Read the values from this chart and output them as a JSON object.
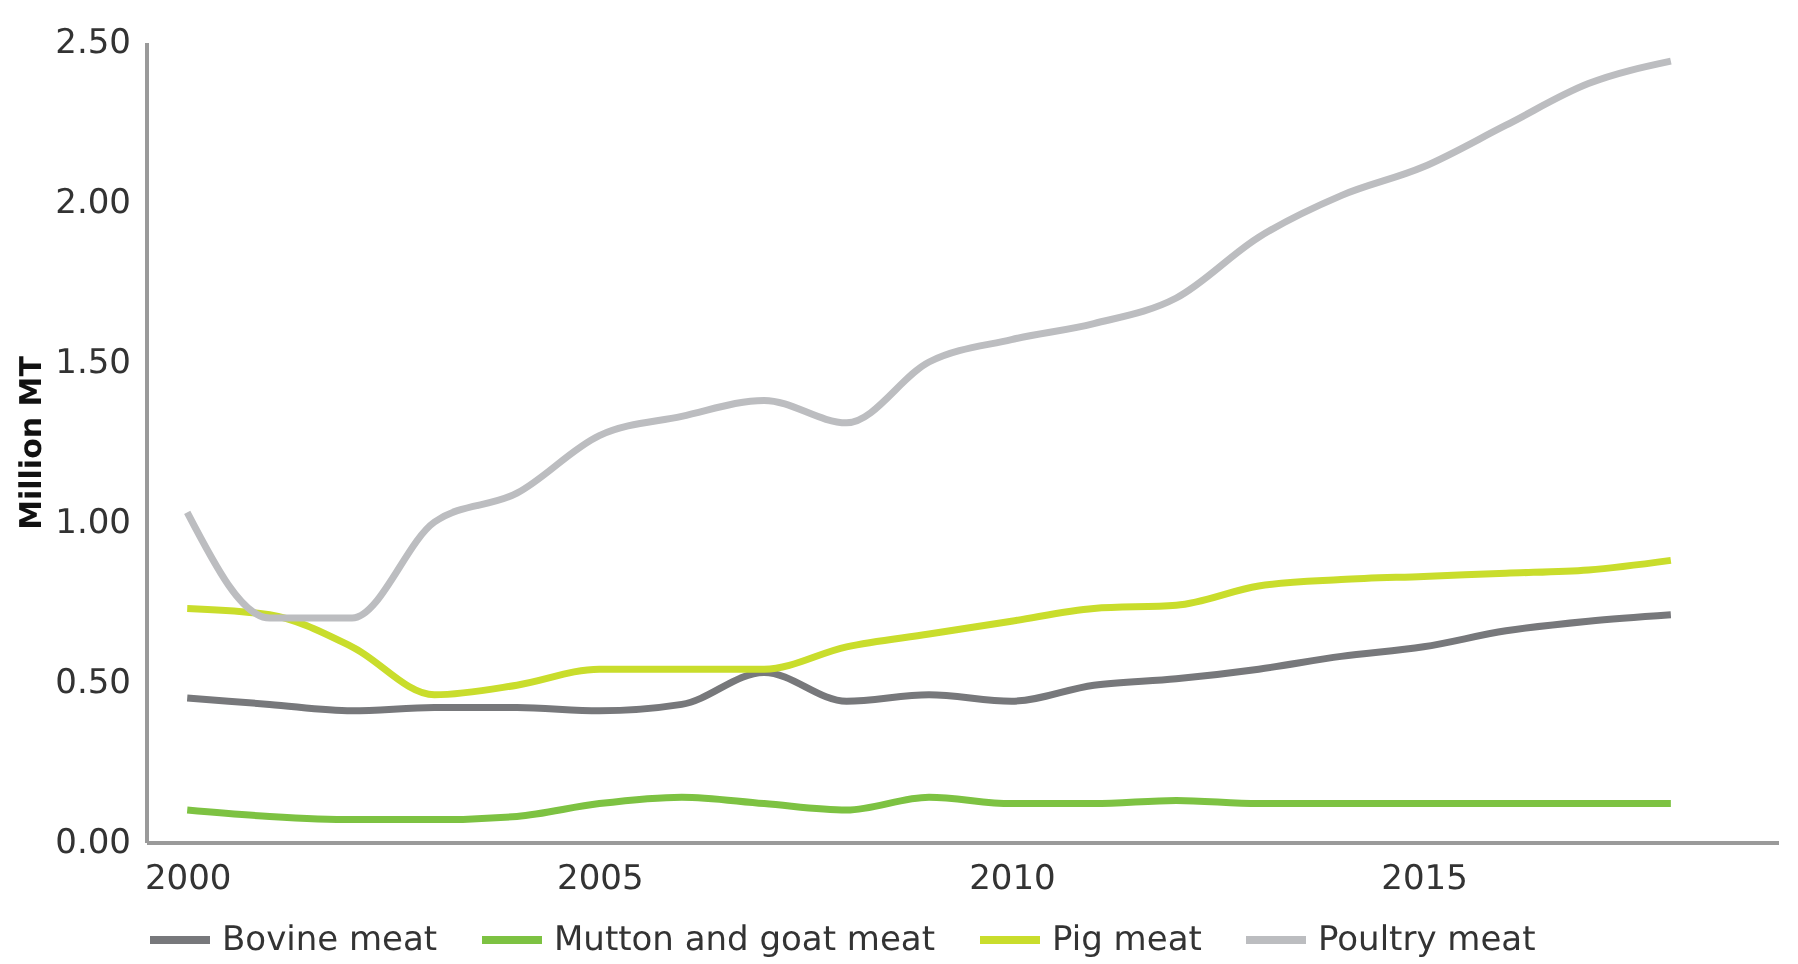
{
  "chart_data": {
    "type": "line",
    "ylabel": "Million MT",
    "x": [
      2000,
      2001,
      2002,
      2003,
      2004,
      2005,
      2006,
      2007,
      2008,
      2009,
      2010,
      2011,
      2012,
      2013,
      2014,
      2015,
      2016,
      2017,
      2018
    ],
    "series": [
      {
        "name": "Bovine meat",
        "color": "#77787b",
        "values": [
          0.45,
          0.43,
          0.41,
          0.42,
          0.42,
          0.41,
          0.43,
          0.53,
          0.44,
          0.46,
          0.44,
          0.49,
          0.51,
          0.54,
          0.58,
          0.61,
          0.66,
          0.69,
          0.71
        ]
      },
      {
        "name": "Mutton and goat meat",
        "color": "#7dc242",
        "values": [
          0.1,
          0.08,
          0.07,
          0.07,
          0.08,
          0.12,
          0.14,
          0.12,
          0.1,
          0.14,
          0.12,
          0.12,
          0.13,
          0.12,
          0.12,
          0.12,
          0.12,
          0.12,
          0.12
        ]
      },
      {
        "name": "Pig meat",
        "color": "#c9dd2c",
        "values": [
          0.73,
          0.71,
          0.61,
          0.46,
          0.49,
          0.54,
          0.54,
          0.54,
          0.61,
          0.65,
          0.69,
          0.73,
          0.74,
          0.8,
          0.82,
          0.83,
          0.84,
          0.85,
          0.88
        ]
      },
      {
        "name": "Poultry meat",
        "color": "#bcbdc0",
        "values": [
          1.03,
          0.7,
          0.7,
          1.0,
          1.09,
          1.27,
          1.33,
          1.38,
          1.31,
          1.5,
          1.57,
          1.62,
          1.7,
          1.89,
          2.02,
          2.11,
          2.24,
          2.37,
          2.44
        ]
      }
    ],
    "xlim": [
      1999.5,
      2019.3
    ],
    "xticks": [
      2000,
      2005,
      2010,
      2015
    ],
    "ylim": [
      0,
      2.5
    ],
    "yticks": [
      {
        "value": 0,
        "label": "0.00"
      },
      {
        "value": 0.5,
        "label": "0.50"
      },
      {
        "value": 1,
        "label": "1.00"
      },
      {
        "value": 1.5,
        "label": "1.50"
      },
      {
        "value": 2,
        "label": "2.00"
      },
      {
        "value": 2.5,
        "label": "2.50"
      }
    ],
    "grid": false,
    "legend": "bottom",
    "marker": "none",
    "line_style": "solid"
  }
}
